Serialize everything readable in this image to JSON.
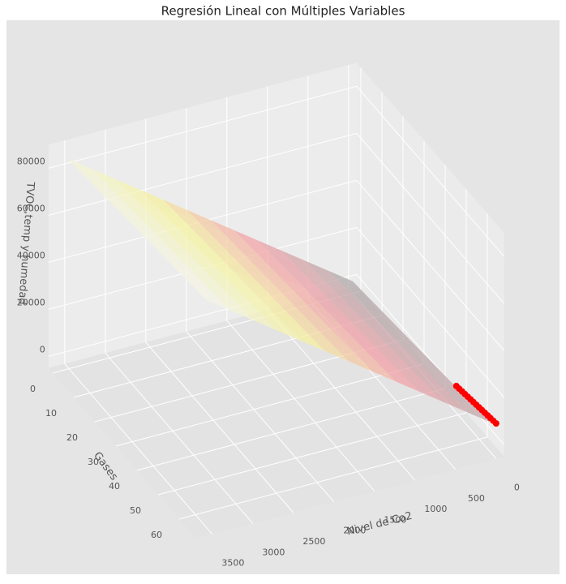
{
  "chart_data": {
    "type": "surface3d",
    "title": "Regresión Lineal con Múltiples Variables",
    "xlabel": "Nivel  de Co2",
    "ylabel": "Gases",
    "zlabel": "TVOC,temp y humedad",
    "xlim": [
      -100,
      3700
    ],
    "ylim": [
      -2,
      68
    ],
    "zlim": [
      -5000,
      90000
    ],
    "xticks": [
      0,
      500,
      1000,
      1500,
      2000,
      2500,
      3000,
      3500
    ],
    "yticks": [
      0,
      10,
      20,
      30,
      40,
      50,
      60
    ],
    "zticks": [
      0,
      20000,
      40000,
      60000,
      80000
    ],
    "grid": true,
    "surface": {
      "x": [
        0,
        3500
      ],
      "y": [
        0,
        65
      ],
      "z": [
        [
          0,
          7600
        ],
        [
          84000,
          91600
        ]
      ],
      "colors": [
        "#a9a9a9",
        "#f2a0a8",
        "#f6f4a0",
        "#f4f4f0"
      ]
    },
    "points": {
      "color": "#ff0000",
      "x": [
        0,
        35,
        70,
        105,
        140,
        175,
        210,
        245,
        280,
        315,
        350,
        385,
        420,
        455,
        490
      ],
      "y": [
        68,
        68,
        68,
        68,
        68,
        68,
        68,
        68,
        68,
        68,
        68,
        68,
        68,
        68,
        68
      ],
      "z": [
        10000,
        11460,
        12910,
        14370,
        15820,
        17280,
        18740,
        20190,
        21650,
        23100,
        24560,
        26020,
        27470,
        28930,
        30380
      ]
    }
  }
}
